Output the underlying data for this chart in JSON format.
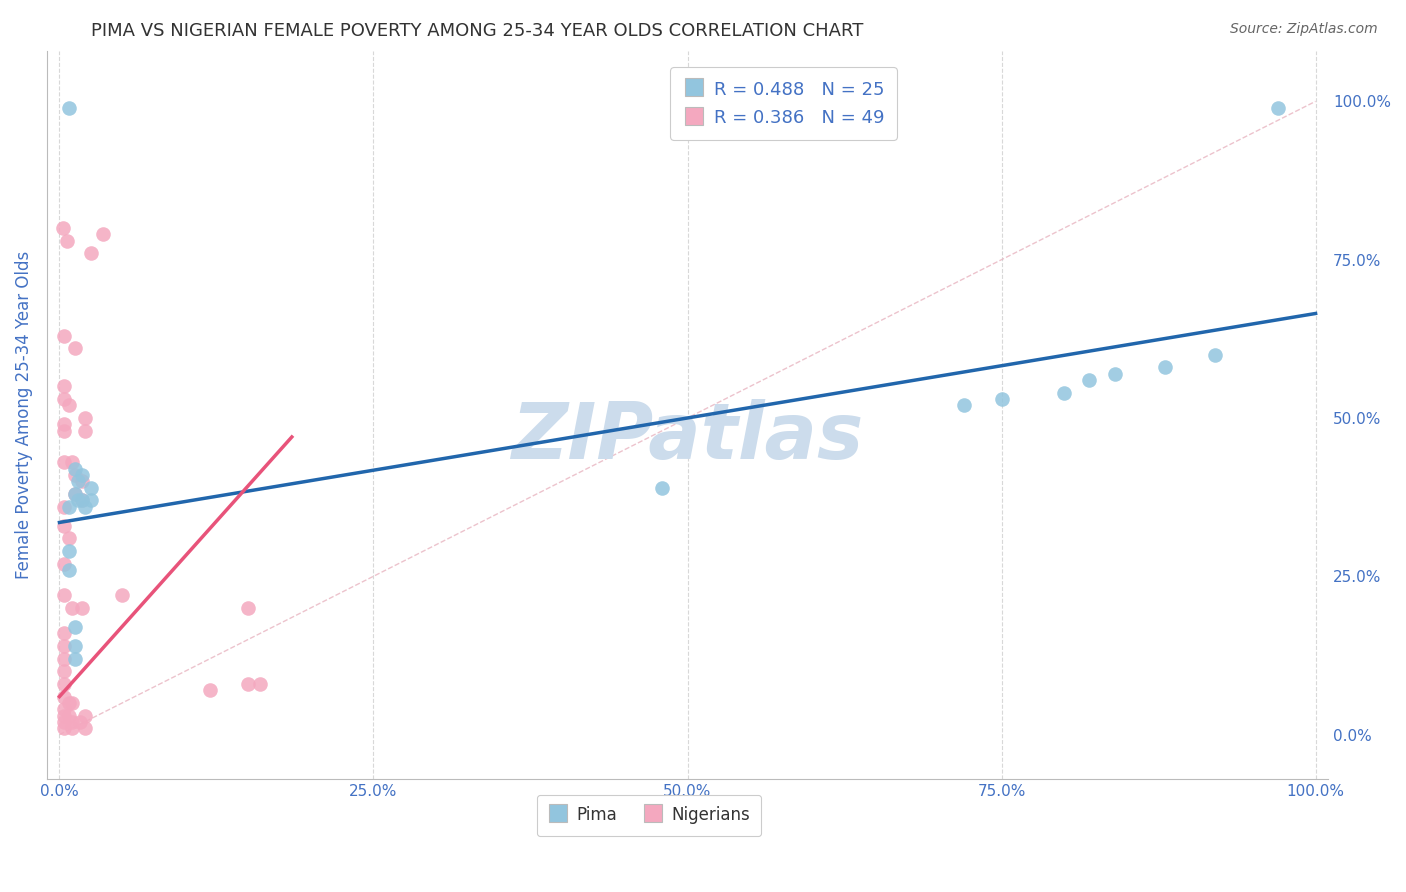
{
  "title": "PIMA VS NIGERIAN FEMALE POVERTY AMONG 25-34 YEAR OLDS CORRELATION CHART",
  "source": "Source: ZipAtlas.com",
  "ylabel": "Female Poverty Among 25-34 Year Olds",
  "xlabel": "",
  "xlim": [
    -0.01,
    1.01
  ],
  "ylim": [
    -0.07,
    1.08
  ],
  "xticks": [
    0.0,
    0.25,
    0.5,
    0.75,
    1.0
  ],
  "yticks": [
    0.0,
    0.25,
    0.5,
    0.75,
    1.0
  ],
  "xticklabels": [
    "0.0%",
    "25.0%",
    "50.0%",
    "75.0%",
    "100.0%"
  ],
  "yticklabels": [
    "0.0%",
    "25.0%",
    "50.0%",
    "75.0%",
    "100.0%"
  ],
  "pima_color": "#92c5de",
  "nigerian_color": "#f4a8bf",
  "pima_line_color": "#2166ac",
  "nigerian_line_color": "#e8537a",
  "pima_R": 0.488,
  "pima_N": 25,
  "nigerian_R": 0.386,
  "nigerian_N": 49,
  "pima_scatter": [
    [
      0.008,
      0.99
    ],
    [
      0.008,
      0.36
    ],
    [
      0.012,
      0.42
    ],
    [
      0.012,
      0.38
    ],
    [
      0.015,
      0.4
    ],
    [
      0.015,
      0.37
    ],
    [
      0.018,
      0.41
    ],
    [
      0.018,
      0.37
    ],
    [
      0.02,
      0.36
    ],
    [
      0.025,
      0.39
    ],
    [
      0.025,
      0.37
    ],
    [
      0.008,
      0.29
    ],
    [
      0.008,
      0.26
    ],
    [
      0.012,
      0.14
    ],
    [
      0.012,
      0.12
    ],
    [
      0.48,
      0.39
    ],
    [
      0.72,
      0.52
    ],
    [
      0.75,
      0.53
    ],
    [
      0.8,
      0.54
    ],
    [
      0.82,
      0.56
    ],
    [
      0.84,
      0.57
    ],
    [
      0.88,
      0.58
    ],
    [
      0.92,
      0.6
    ],
    [
      0.97,
      0.99
    ],
    [
      0.012,
      0.17
    ]
  ],
  "nigerian_scatter": [
    [
      0.003,
      0.8
    ],
    [
      0.006,
      0.78
    ],
    [
      0.025,
      0.76
    ],
    [
      0.035,
      0.79
    ],
    [
      0.004,
      0.63
    ],
    [
      0.012,
      0.61
    ],
    [
      0.004,
      0.55
    ],
    [
      0.004,
      0.53
    ],
    [
      0.008,
      0.52
    ],
    [
      0.004,
      0.49
    ],
    [
      0.004,
      0.48
    ],
    [
      0.02,
      0.48
    ],
    [
      0.02,
      0.5
    ],
    [
      0.004,
      0.43
    ],
    [
      0.01,
      0.43
    ],
    [
      0.012,
      0.41
    ],
    [
      0.018,
      0.4
    ],
    [
      0.012,
      0.38
    ],
    [
      0.018,
      0.37
    ],
    [
      0.004,
      0.36
    ],
    [
      0.004,
      0.33
    ],
    [
      0.008,
      0.31
    ],
    [
      0.004,
      0.27
    ],
    [
      0.004,
      0.22
    ],
    [
      0.01,
      0.2
    ],
    [
      0.018,
      0.2
    ],
    [
      0.05,
      0.22
    ],
    [
      0.004,
      0.16
    ],
    [
      0.004,
      0.14
    ],
    [
      0.004,
      0.12
    ],
    [
      0.004,
      0.1
    ],
    [
      0.004,
      0.08
    ],
    [
      0.004,
      0.06
    ],
    [
      0.008,
      0.05
    ],
    [
      0.01,
      0.05
    ],
    [
      0.004,
      0.04
    ],
    [
      0.004,
      0.03
    ],
    [
      0.008,
      0.03
    ],
    [
      0.004,
      0.02
    ],
    [
      0.01,
      0.02
    ],
    [
      0.004,
      0.01
    ],
    [
      0.01,
      0.01
    ],
    [
      0.016,
      0.02
    ],
    [
      0.02,
      0.03
    ],
    [
      0.02,
      0.01
    ],
    [
      0.15,
      0.08
    ],
    [
      0.16,
      0.08
    ],
    [
      0.12,
      0.07
    ],
    [
      0.15,
      0.2
    ]
  ],
  "pima_line": [
    [
      0.0,
      0.335
    ],
    [
      1.0,
      0.665
    ]
  ],
  "nigerian_line": [
    [
      0.0,
      0.06
    ],
    [
      0.185,
      0.47
    ]
  ],
  "ref_line": [
    [
      0.0,
      0.0
    ],
    [
      1.0,
      1.0
    ]
  ],
  "watermark": "ZIPatlas",
  "watermark_color": "#ccdcec",
  "grid_color": "#d8d8d8",
  "title_color": "#333333",
  "axis_label_color": "#4472c4",
  "tick_color": "#4472c4"
}
